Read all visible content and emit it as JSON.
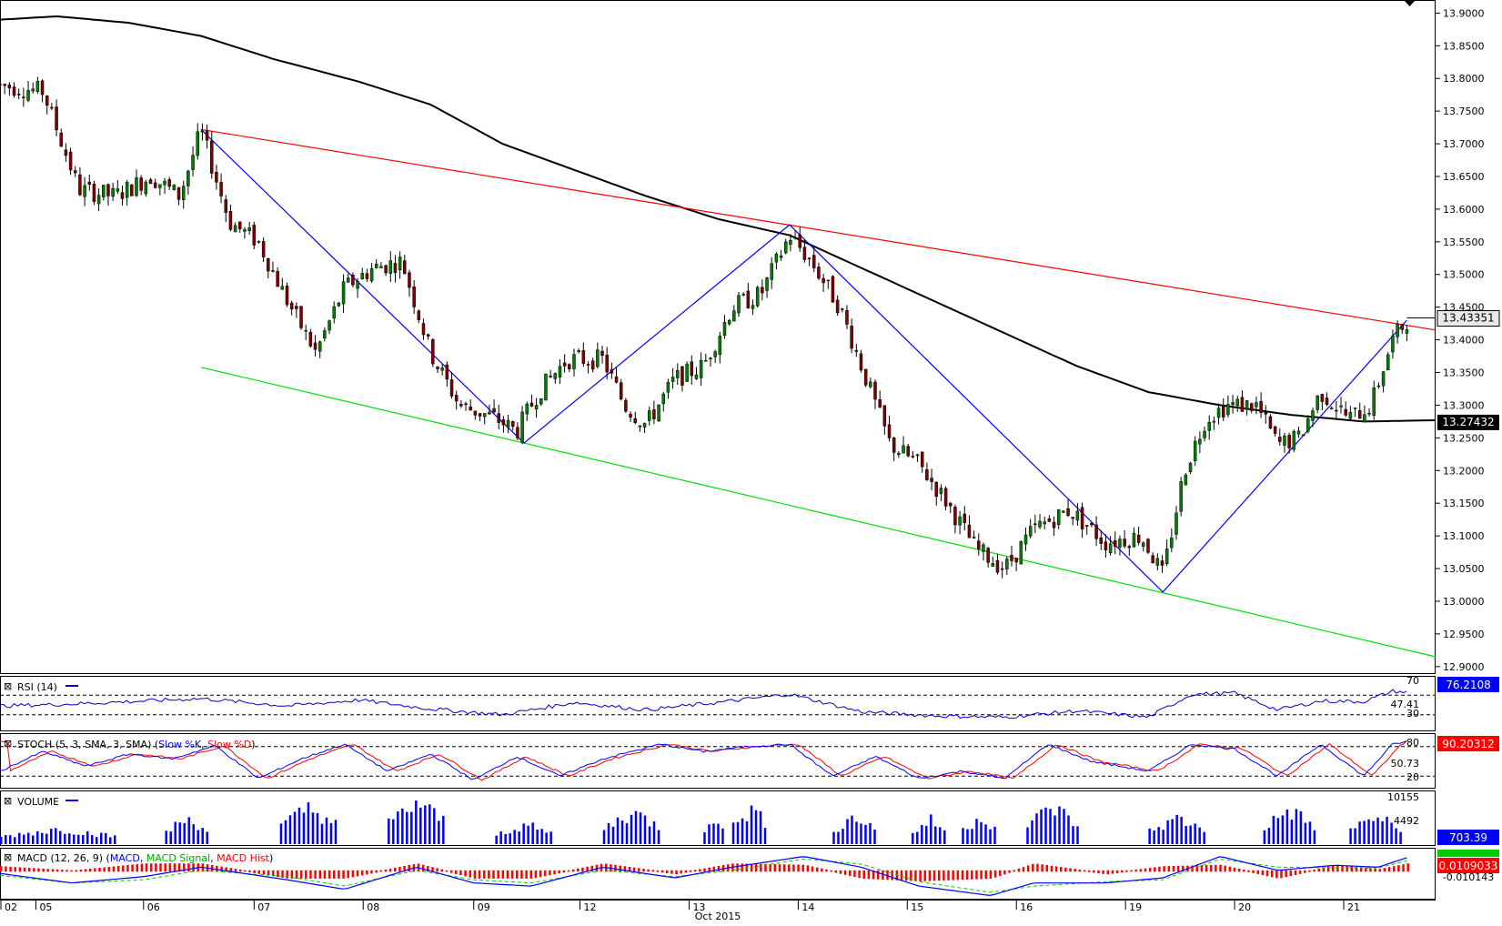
{
  "chart_data": {
    "type": "candlestick",
    "instrument_note": "",
    "x_tick_labels": [
      "02",
      "05",
      "06",
      "07",
      "08",
      "09",
      "12",
      "13",
      "14",
      "15",
      "16",
      "19",
      "20",
      "21"
    ],
    "x_period_label": "Oct 2015",
    "price_panel": {
      "ylim": [
        12.89,
        13.92
      ],
      "y_ticks": [
        "13.9000",
        "13.8500",
        "13.8000",
        "13.7500",
        "13.7000",
        "13.6500",
        "13.6000",
        "13.5500",
        "13.5000",
        "13.4500",
        "13.4000",
        "13.3500",
        "13.3000",
        "13.2500",
        "13.2000",
        "13.1500",
        "13.1000",
        "13.0500",
        "13.0000",
        "12.9500",
        "12.9000"
      ],
      "y_tick_values": [
        13.9,
        13.85,
        13.8,
        13.75,
        13.7,
        13.65,
        13.6,
        13.55,
        13.5,
        13.45,
        13.4,
        13.35,
        13.3,
        13.25,
        13.2,
        13.15,
        13.1,
        13.05,
        13.0,
        12.95,
        12.9
      ],
      "current_price_label": "13.43351",
      "current_price": 13.43351,
      "moving_average_label": "13.27432",
      "moving_average_value": 13.27432,
      "moving_average_path": [
        [
          0,
          13.89
        ],
        [
          0.04,
          13.895
        ],
        [
          0.09,
          13.885
        ],
        [
          0.14,
          13.865
        ],
        [
          0.19,
          13.83
        ],
        [
          0.25,
          13.795
        ],
        [
          0.3,
          13.76
        ],
        [
          0.35,
          13.7
        ],
        [
          0.4,
          13.66
        ],
        [
          0.45,
          13.62
        ],
        [
          0.5,
          13.585
        ],
        [
          0.55,
          13.56
        ],
        [
          0.6,
          13.51
        ],
        [
          0.65,
          13.46
        ],
        [
          0.7,
          13.41
        ],
        [
          0.75,
          13.36
        ],
        [
          0.8,
          13.32
        ],
        [
          0.85,
          13.3
        ],
        [
          0.9,
          13.285
        ],
        [
          0.95,
          13.275
        ],
        [
          1.0,
          13.277
        ]
      ],
      "resistance_line": [
        [
          0.14,
          13.722
        ],
        [
          1.0,
          13.415
        ]
      ],
      "support_line": [
        [
          0.14,
          13.358
        ],
        [
          1.0,
          12.915
        ]
      ],
      "zigzag": [
        [
          0.14,
          13.722
        ],
        [
          0.365,
          13.242
        ],
        [
          0.55,
          13.576
        ],
        [
          0.81,
          13.014
        ],
        [
          0.98,
          13.43
        ]
      ],
      "candle_anchors": [
        [
          0,
          13.79
        ],
        [
          0.03,
          13.78
        ],
        [
          0.055,
          13.63
        ],
        [
          0.08,
          13.62
        ],
        [
          0.105,
          13.65
        ],
        [
          0.125,
          13.62
        ],
        [
          0.14,
          13.72
        ],
        [
          0.16,
          13.58
        ],
        [
          0.18,
          13.55
        ],
        [
          0.2,
          13.46
        ],
        [
          0.22,
          13.38
        ],
        [
          0.24,
          13.48
        ],
        [
          0.26,
          13.51
        ],
        [
          0.28,
          13.52
        ],
        [
          0.3,
          13.38
        ],
        [
          0.32,
          13.3
        ],
        [
          0.345,
          13.28
        ],
        [
          0.36,
          13.26
        ],
        [
          0.375,
          13.32
        ],
        [
          0.395,
          13.37
        ],
        [
          0.42,
          13.37
        ],
        [
          0.435,
          13.3
        ],
        [
          0.45,
          13.27
        ],
        [
          0.47,
          13.34
        ],
        [
          0.49,
          13.36
        ],
        [
          0.51,
          13.45
        ],
        [
          0.53,
          13.47
        ],
        [
          0.55,
          13.56
        ],
        [
          0.565,
          13.52
        ],
        [
          0.585,
          13.45
        ],
        [
          0.6,
          13.36
        ],
        [
          0.62,
          13.24
        ],
        [
          0.64,
          13.21
        ],
        [
          0.66,
          13.15
        ],
        [
          0.68,
          13.08
        ],
        [
          0.7,
          13.05
        ],
        [
          0.72,
          13.11
        ],
        [
          0.745,
          13.14
        ],
        [
          0.77,
          13.09
        ],
        [
          0.795,
          13.1
        ],
        [
          0.81,
          13.04
        ],
        [
          0.825,
          13.2
        ],
        [
          0.84,
          13.28
        ],
        [
          0.855,
          13.3
        ],
        [
          0.875,
          13.3
        ],
        [
          0.89,
          13.24
        ],
        [
          0.905,
          13.25
        ],
        [
          0.92,
          13.32
        ],
        [
          0.94,
          13.28
        ],
        [
          0.955,
          13.3
        ],
        [
          0.97,
          13.4
        ],
        [
          0.98,
          13.43
        ]
      ]
    },
    "rsi_panel": {
      "label": "RSI (14)",
      "ylim": [
        0,
        100
      ],
      "levels": [
        70,
        30
      ],
      "level_labels": [
        "70",
        "30"
      ],
      "mid_label": "47.41",
      "current_label": "76.2108",
      "current_value": 76.2108,
      "anchors": [
        [
          0,
          48
        ],
        [
          0.05,
          52
        ],
        [
          0.1,
          58
        ],
        [
          0.14,
          63
        ],
        [
          0.2,
          48
        ],
        [
          0.25,
          60
        ],
        [
          0.3,
          42
        ],
        [
          0.35,
          30
        ],
        [
          0.4,
          55
        ],
        [
          0.45,
          40
        ],
        [
          0.5,
          55
        ],
        [
          0.55,
          72
        ],
        [
          0.6,
          36
        ],
        [
          0.65,
          28
        ],
        [
          0.7,
          25
        ],
        [
          0.75,
          38
        ],
        [
          0.8,
          25
        ],
        [
          0.83,
          72
        ],
        [
          0.86,
          74
        ],
        [
          0.89,
          40
        ],
        [
          0.92,
          58
        ],
        [
          0.95,
          57
        ],
        [
          0.97,
          78
        ],
        [
          0.98,
          76
        ]
      ]
    },
    "stoch_panel": {
      "label": "STOCH (5, 3, SMA, 3, SMA)",
      "legend": [
        "Slow %K",
        "Slow %D"
      ],
      "ylim": [
        0,
        100
      ],
      "levels": [
        80,
        20
      ],
      "level_labels": [
        "80",
        "20"
      ],
      "mid_label": "50.73",
      "current_label": "90.20312",
      "current_value": 90.20312,
      "anchors": [
        [
          0,
          30
        ],
        [
          0.03,
          70
        ],
        [
          0.06,
          40
        ],
        [
          0.09,
          65
        ],
        [
          0.12,
          55
        ],
        [
          0.15,
          82
        ],
        [
          0.18,
          15
        ],
        [
          0.21,
          55
        ],
        [
          0.24,
          85
        ],
        [
          0.27,
          30
        ],
        [
          0.3,
          65
        ],
        [
          0.33,
          12
        ],
        [
          0.36,
          60
        ],
        [
          0.39,
          20
        ],
        [
          0.42,
          55
        ],
        [
          0.46,
          85
        ],
        [
          0.49,
          70
        ],
        [
          0.52,
          80
        ],
        [
          0.55,
          85
        ],
        [
          0.58,
          20
        ],
        [
          0.61,
          60
        ],
        [
          0.64,
          15
        ],
        [
          0.67,
          30
        ],
        [
          0.7,
          15
        ],
        [
          0.73,
          85
        ],
        [
          0.76,
          50
        ],
        [
          0.8,
          30
        ],
        [
          0.83,
          85
        ],
        [
          0.86,
          75
        ],
        [
          0.89,
          20
        ],
        [
          0.92,
          85
        ],
        [
          0.95,
          20
        ],
        [
          0.97,
          85
        ],
        [
          0.98,
          90
        ]
      ]
    },
    "volume_panel": {
      "label": "VOLUME",
      "labels": [
        "10155",
        "4492"
      ],
      "current_label": "703.39",
      "ylim": [
        0,
        10155
      ],
      "clusters": [
        [
          0.0,
          0.08,
          3500
        ],
        [
          0.115,
          0.145,
          6000
        ],
        [
          0.195,
          0.235,
          8500
        ],
        [
          0.27,
          0.31,
          9800
        ],
        [
          0.345,
          0.385,
          4500
        ],
        [
          0.42,
          0.46,
          7500
        ],
        [
          0.49,
          0.505,
          7000
        ],
        [
          0.51,
          0.535,
          8200
        ],
        [
          0.58,
          0.61,
          6500
        ],
        [
          0.635,
          0.66,
          5500
        ],
        [
          0.67,
          0.695,
          6500
        ],
        [
          0.715,
          0.75,
          8800
        ],
        [
          0.8,
          0.84,
          6000
        ],
        [
          0.88,
          0.915,
          8000
        ],
        [
          0.94,
          0.975,
          6500
        ]
      ]
    },
    "macd_panel": {
      "label": "MACD (12, 26, 9)",
      "legend": [
        "MACD",
        "MACD Signal",
        "MACD Hist"
      ],
      "labels": [
        "0.0109033",
        "-0.010143"
      ],
      "current_label": "0.0109033",
      "ylim": [
        -0.045,
        0.03
      ],
      "macd_anchors": [
        [
          0,
          -0.005
        ],
        [
          0.05,
          -0.02
        ],
        [
          0.1,
          -0.01
        ],
        [
          0.14,
          0.005
        ],
        [
          0.2,
          -0.015
        ],
        [
          0.24,
          -0.03
        ],
        [
          0.29,
          0.005
        ],
        [
          0.33,
          -0.02
        ],
        [
          0.37,
          -0.025
        ],
        [
          0.42,
          0.005
        ],
        [
          0.47,
          -0.012
        ],
        [
          0.51,
          0.005
        ],
        [
          0.56,
          0.022
        ],
        [
          0.6,
          0.005
        ],
        [
          0.64,
          -0.025
        ],
        [
          0.69,
          -0.04
        ],
        [
          0.72,
          -0.02
        ],
        [
          0.77,
          -0.02
        ],
        [
          0.81,
          -0.012
        ],
        [
          0.85,
          0.022
        ],
        [
          0.89,
          0.0
        ],
        [
          0.93,
          0.008
        ],
        [
          0.96,
          0.005
        ],
        [
          0.98,
          0.02
        ]
      ],
      "signal_anchors": [
        [
          0,
          -0.008
        ],
        [
          0.05,
          -0.02
        ],
        [
          0.1,
          -0.015
        ],
        [
          0.14,
          0.0
        ],
        [
          0.2,
          -0.01
        ],
        [
          0.24,
          -0.025
        ],
        [
          0.29,
          0.0
        ],
        [
          0.33,
          -0.015
        ],
        [
          0.37,
          -0.02
        ],
        [
          0.42,
          0.0
        ],
        [
          0.47,
          -0.01
        ],
        [
          0.51,
          0.0
        ],
        [
          0.56,
          0.018
        ],
        [
          0.6,
          0.01
        ],
        [
          0.64,
          -0.018
        ],
        [
          0.69,
          -0.035
        ],
        [
          0.72,
          -0.025
        ],
        [
          0.77,
          -0.018
        ],
        [
          0.81,
          -0.015
        ],
        [
          0.85,
          0.018
        ],
        [
          0.89,
          0.005
        ],
        [
          0.93,
          0.004
        ],
        [
          0.96,
          0.004
        ],
        [
          0.98,
          0.015
        ]
      ]
    }
  },
  "colors": {
    "up_candle": "#008000",
    "down_candle": "#800000",
    "moving_average": "#000000",
    "resistance": "#ff0000",
    "support": "#00e000",
    "zigzag": "#0000ff",
    "rsi_line": "#0000cc",
    "stoch_k": "#0000ff",
    "stoch_d": "#ff0000",
    "volume": "#0000ff",
    "macd_line": "#0000ff",
    "macd_signal": "#00cc00",
    "macd_hist": "#ff0000",
    "value_box_blue": "#0000ff",
    "value_box_red": "#ff0000"
  }
}
